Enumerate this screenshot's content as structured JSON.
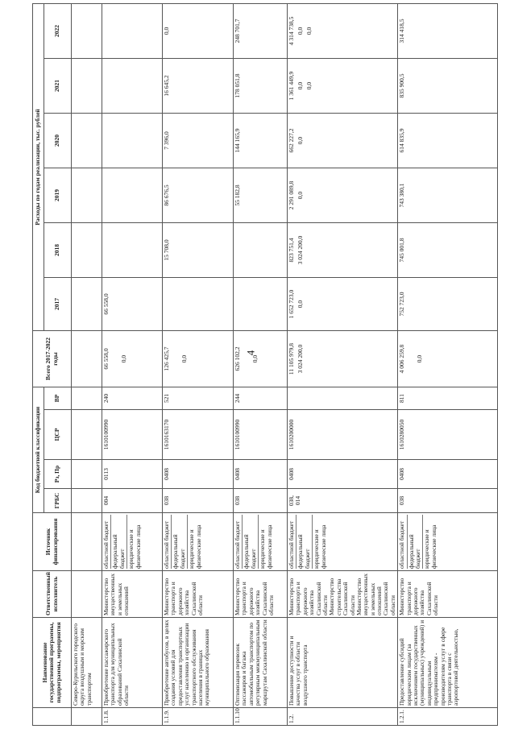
{
  "page_number": "4",
  "headers": {
    "name": "Наименование государственной программы, подпрограммы, мероприятия",
    "executor": "Ответственный исполнитель",
    "source": "Источник финансирования",
    "budget_group": "Код бюджетной классификации",
    "grbs": "ГРБС",
    "rz_pr": "Рз, Пр",
    "csr": "ЦСР",
    "vr": "ВР",
    "total": "Всего 2017-2022 годы",
    "expenses_group": "Расходы по годам реализации, тыс. рублей",
    "years": [
      "2017",
      "2018",
      "2019",
      "2020",
      "2021",
      "2022"
    ]
  },
  "rows": [
    {
      "num": "",
      "name": "Северо-Курильского городского округа воздушным и морским транспортом",
      "executor": "",
      "sources": [],
      "grbs": "",
      "rz_pr": "",
      "csr": "",
      "vr": "",
      "total": [],
      "years": [
        [],
        [],
        [],
        [],
        [],
        []
      ]
    },
    {
      "num": "1.1.8.",
      "name": "Приобретение пассажирского транспорта для муниципальных образований Сахалинской области",
      "executor": "Министерство имущественных и земельных отношений",
      "sources": [
        "областной бюджет",
        "федеральный бюджет",
        "юридические и физические лица"
      ],
      "grbs": "004",
      "rz_pr": "0113",
      "csr": "1610100990",
      "vr": "240",
      "total": [
        "66 558,0",
        "",
        "0,0"
      ],
      "years": [
        [
          "66 558,0"
        ],
        [],
        [],
        [],
        [],
        []
      ]
    },
    {
      "num": "1.1.9.",
      "name": "Приобретение автобусов, в целях создания условий для предоставления транспортных услуг населению и организации транспортного обслуживания населения в границах муниципального образования",
      "executor": "Министерство транспорта и дорожного хозяйства Сахалинской области",
      "sources": [
        "областной бюджет",
        "федеральный бюджет",
        "юридические и физические лица"
      ],
      "grbs": "038",
      "rz_pr": "0408",
      "csr": "1610163170",
      "vr": "521",
      "total": [
        "126 425,7",
        "",
        "0,0"
      ],
      "years": [
        [],
        [
          "15 708,0"
        ],
        [
          "86 676,5"
        ],
        [
          "7 396,0"
        ],
        [
          "16 645,2"
        ],
        [
          "0,0"
        ]
      ]
    },
    {
      "num": "1.1.10.",
      "name": "Оптимизация перевозок пассажиров и багажа автомобильным транспортом по регулярным межмуниципальным маршрутам Сахалинской области",
      "executor": "Министерство транспорта и дорожного хозяйства Сахалинской области",
      "sources": [
        "областной бюджет",
        "федеральный бюджет",
        "юридические и физические лица"
      ],
      "grbs": "038",
      "rz_pr": "0408",
      "csr": "1610100990",
      "vr": "244",
      "total": [
        "626 102,2",
        "",
        "0,0"
      ],
      "years": [
        [],
        [],
        [
          "55 182,8"
        ],
        [
          "144 165,9"
        ],
        [
          "178 051,8"
        ],
        [
          "248 701,7"
        ]
      ]
    },
    {
      "num": "1.2.",
      "name": "Повышение доступности и качества услуг в области воздушного транспорта",
      "executor": "Министерство транспорта и дорожного хозяйства Сахалинской области Министерство строительства Сахалинской области Министерство имущественных и земельных отношений Сахалинской области",
      "sources": [
        "областной бюджет",
        "федеральный бюджет",
        "юридические и физические лица"
      ],
      "grbs": "038, 014",
      "rz_pr": "0408",
      "csr": "1610200000",
      "vr": "",
      "total": [
        "11 105 979,8",
        "3 024 200,0",
        ""
      ],
      "years": [
        [
          "1 652 723,0",
          "0,0"
        ],
        [
          "823 751,4",
          "3 024 200,0"
        ],
        [
          "2 291 089,8",
          "0,0"
        ],
        [
          "662 227,2",
          "0,0"
        ],
        [
          "1 361 449,9",
          "0,0",
          "0,0"
        ],
        [
          "4 314 738,5",
          "0,0",
          "0,0"
        ]
      ]
    },
    {
      "num": "1.2.1.",
      "name": "Предоставление субсидий юридическим лицам (за исключением государственных (муниципальных) учреждений) и индивидуальным предпринимателям - производителям услуг в сфере транспорта в связи с аэропортовой деятельностью,",
      "executor": "Министерство транспорта и дорожного хозяйства Сахалинской области",
      "sources": [
        "областной бюджет",
        "федеральный бюджет",
        "юридические и физические лица"
      ],
      "grbs": "038",
      "rz_pr": "0408",
      "csr": "1610280050",
      "vr": "811",
      "total": [
        "4 006 259,8",
        "",
        "0,0"
      ],
      "years": [
        [
          "752 723,0"
        ],
        [
          "745 001,8"
        ],
        [
          "743 380,1"
        ],
        [
          "614 835,9"
        ],
        [
          "835 900,5"
        ],
        [
          "314 418,5"
        ]
      ]
    }
  ]
}
